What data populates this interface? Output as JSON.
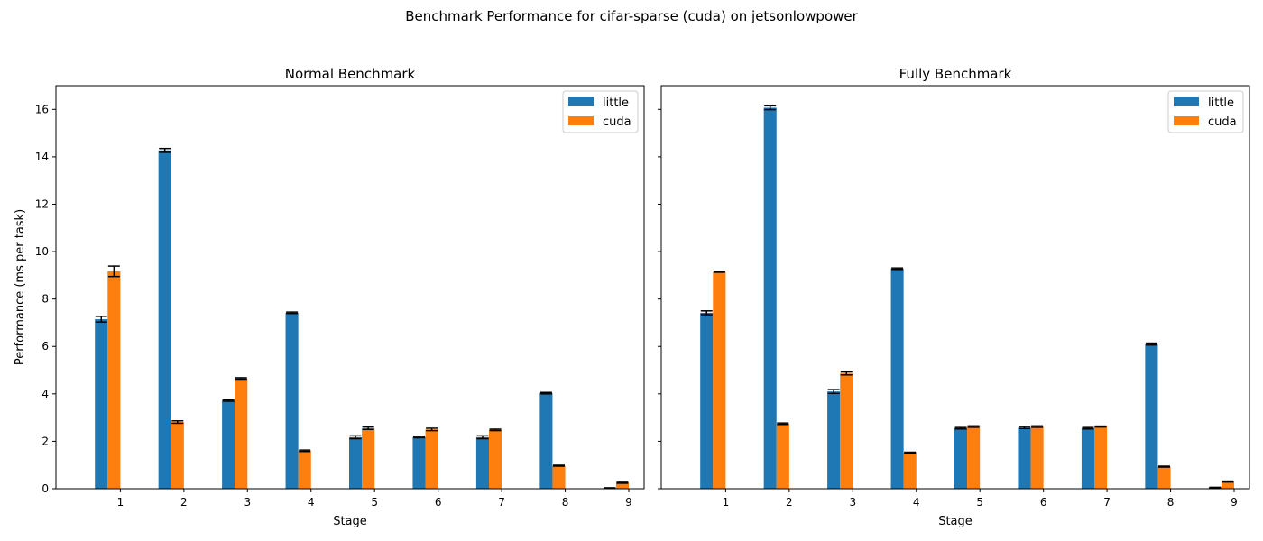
{
  "figure": {
    "suptitle": "Benchmark Performance for cifar-sparse (cuda) on jetsonlowpower",
    "colors": {
      "little": "#1f77b4",
      "cuda": "#ff7f0e",
      "errorbar": "#000000"
    }
  },
  "chart_data": [
    {
      "type": "bar",
      "title": "Normal Benchmark",
      "xlabel": "Stage",
      "ylabel": "Performance (ms per task)",
      "categories": [
        "1",
        "2",
        "3",
        "4",
        "5",
        "6",
        "7",
        "8",
        "9"
      ],
      "ylim": [
        0,
        17
      ],
      "yticks": [
        0,
        2,
        4,
        6,
        8,
        10,
        12,
        14,
        16
      ],
      "legend_position": "top-right",
      "series": [
        {
          "name": "little",
          "values": [
            7.15,
            14.27,
            3.72,
            7.42,
            2.17,
            2.18,
            2.17,
            4.03,
            0.03
          ],
          "errors": [
            0.12,
            0.08,
            0.03,
            0.03,
            0.06,
            0.03,
            0.06,
            0.03,
            0.01
          ]
        },
        {
          "name": "cuda",
          "values": [
            9.17,
            2.81,
            4.65,
            1.6,
            2.55,
            2.5,
            2.48,
            0.97,
            0.25
          ],
          "errors": [
            0.22,
            0.05,
            0.03,
            0.03,
            0.05,
            0.05,
            0.03,
            0.02,
            0.02
          ]
        }
      ]
    },
    {
      "type": "bar",
      "title": "Fully Benchmark",
      "xlabel": "Stage",
      "ylabel": "",
      "categories": [
        "1",
        "2",
        "3",
        "4",
        "5",
        "6",
        "7",
        "8",
        "9"
      ],
      "ylim": [
        0,
        17
      ],
      "yticks": [
        0,
        2,
        4,
        6,
        8,
        10,
        12,
        14,
        16
      ],
      "legend_position": "top-right",
      "series": [
        {
          "name": "little",
          "values": [
            7.42,
            16.07,
            4.1,
            9.28,
            2.55,
            2.58,
            2.55,
            6.1,
            0.05
          ],
          "errors": [
            0.08,
            0.08,
            0.08,
            0.03,
            0.03,
            0.04,
            0.03,
            0.04,
            0.01
          ]
        },
        {
          "name": "cuda",
          "values": [
            9.15,
            2.74,
            4.86,
            1.52,
            2.62,
            2.62,
            2.62,
            0.93,
            0.3
          ],
          "errors": [
            0.02,
            0.03,
            0.06,
            0.02,
            0.03,
            0.03,
            0.02,
            0.02,
            0.02
          ]
        }
      ]
    }
  ]
}
